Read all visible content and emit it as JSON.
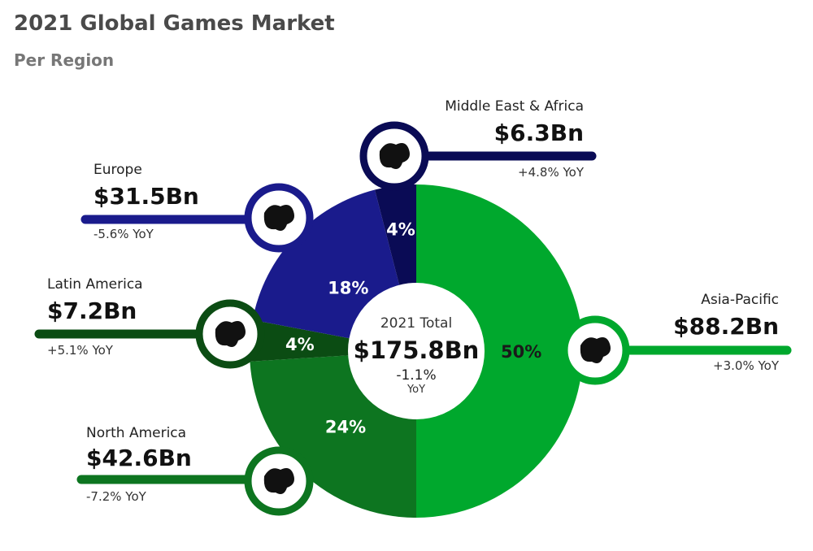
{
  "title": "2021 Global Games Market",
  "subtitle": "Per Region",
  "chart_data": {
    "type": "pie",
    "title": "2021 Global Games Market",
    "subtitle": "Per Region",
    "total": {
      "label": "2021 Total",
      "value": "$175.8Bn",
      "change": "-1.1%",
      "change_suffix": "YoY"
    },
    "slices": [
      {
        "name": "Asia-Pacific",
        "percent": 50,
        "percent_label": "50%",
        "value": "$88.2Bn",
        "yoy": "+3.0% YoY",
        "color": "#00a82d",
        "icon": "asia-pacific-map-icon"
      },
      {
        "name": "North America",
        "percent": 24,
        "percent_label": "24%",
        "value": "$42.6Bn",
        "yoy": "-7.2% YoY",
        "color": "#0d7520",
        "icon": "north-america-map-icon"
      },
      {
        "name": "Latin America",
        "percent": 4,
        "percent_label": "4%",
        "value": "$7.2Bn",
        "yoy": "+5.1% YoY",
        "color": "#0b4c13",
        "icon": "latin-america-map-icon"
      },
      {
        "name": "Europe",
        "percent": 18,
        "percent_label": "18%",
        "value": "$31.5Bn",
        "yoy": "-5.6% YoY",
        "color": "#1a1b8c",
        "icon": "europe-map-icon"
      },
      {
        "name": "Middle East & Africa",
        "percent": 4,
        "percent_label": "4%",
        "value": "$6.3Bn",
        "yoy": "+4.8% YoY",
        "color": "#0a0b55",
        "icon": "africa-map-icon"
      }
    ]
  }
}
